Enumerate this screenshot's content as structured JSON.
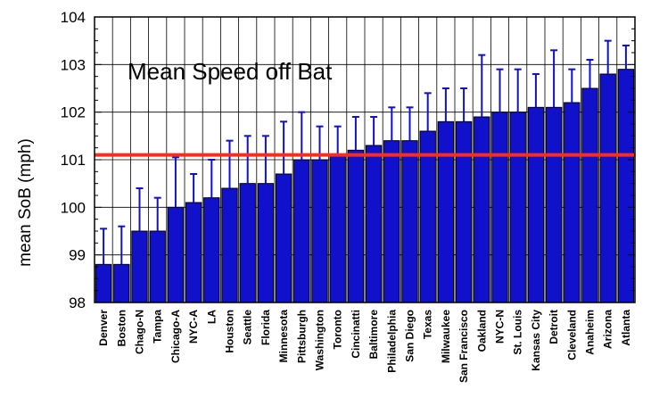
{
  "chart_data": {
    "type": "bar",
    "title": "Mean Speed off Bat",
    "xlabel": "",
    "ylabel": "mean SoB (mph)",
    "ylim": [
      98,
      104
    ],
    "yticks": [
      98,
      99,
      100,
      101,
      102,
      103,
      104
    ],
    "grid": true,
    "categories": [
      "Denver",
      "Boston",
      "Chago-N",
      "Tampa",
      "Chicago-A",
      "NYC-A",
      "LA",
      "Houston",
      "Seattle",
      "Florida",
      "Minnesota",
      "Pittsburgh",
      "Washington",
      "Toronto",
      "Cincinatti",
      "Baltimore",
      "Philadelphia",
      "San Diego",
      "Texas",
      "Milwaukee",
      "San Francisco",
      "Oakland",
      "NYC-N",
      "St. Louis",
      "Kansas City",
      "Detroit",
      "Cleveland",
      "Anaheim",
      "Arizona",
      "Atlanta"
    ],
    "values": [
      98.8,
      98.8,
      99.5,
      99.5,
      100.0,
      100.1,
      100.2,
      100.4,
      100.5,
      100.5,
      100.7,
      101.0,
      101.0,
      101.1,
      101.2,
      101.3,
      101.4,
      101.4,
      101.6,
      101.8,
      101.8,
      101.9,
      102.0,
      102.0,
      102.1,
      102.1,
      102.2,
      102.5,
      102.8,
      102.9
    ],
    "error_upper": [
      99.55,
      99.6,
      100.4,
      100.2,
      101.05,
      100.7,
      101.0,
      101.4,
      101.5,
      101.5,
      101.8,
      102.0,
      101.7,
      101.7,
      101.9,
      101.9,
      102.1,
      102.1,
      102.4,
      102.5,
      102.5,
      103.2,
      102.9,
      102.9,
      102.8,
      103.3,
      102.9,
      103.1,
      103.5,
      103.4
    ],
    "reference_line": 101.1,
    "colors": {
      "bar": "#1111cc",
      "bar_edge": "#000000",
      "error": "#1111cc",
      "reference": "#ff2a1a",
      "grid": "#000000"
    }
  }
}
